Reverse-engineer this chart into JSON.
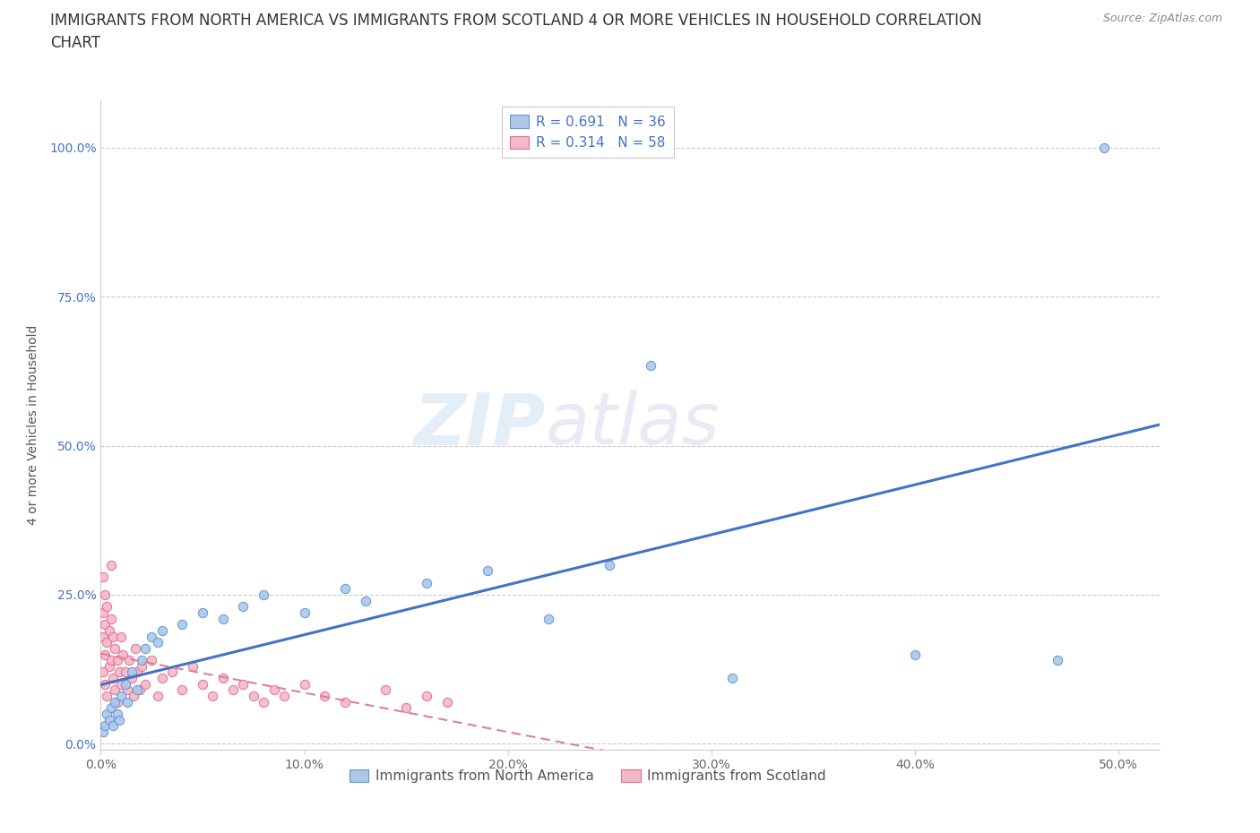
{
  "title_line1": "IMMIGRANTS FROM NORTH AMERICA VS IMMIGRANTS FROM SCOTLAND 4 OR MORE VEHICLES IN HOUSEHOLD CORRELATION",
  "title_line2": "CHART",
  "source_text": "Source: ZipAtlas.com",
  "ylabel": "4 or more Vehicles in Household",
  "xlabel": "",
  "xlim": [
    0.0,
    0.52
  ],
  "ylim": [
    -0.01,
    1.08
  ],
  "xtick_labels": [
    "0.0%",
    "10.0%",
    "20.0%",
    "30.0%",
    "40.0%",
    "50.0%"
  ],
  "xtick_vals": [
    0.0,
    0.1,
    0.2,
    0.3,
    0.4,
    0.5
  ],
  "ytick_labels": [
    "0.0%",
    "25.0%",
    "50.0%",
    "75.0%",
    "100.0%"
  ],
  "ytick_vals": [
    0.0,
    0.25,
    0.5,
    0.75,
    1.0
  ],
  "R_north_america": 0.691,
  "N_north_america": 36,
  "R_scotland": 0.314,
  "N_scotland": 58,
  "color_north_america": "#aec6e8",
  "color_scotland": "#f4b8c8",
  "edge_color_north_america": "#5b9bd5",
  "edge_color_scotland": "#e07090",
  "line_color_north_america": "#4472c4",
  "line_color_scotland": "#e08090",
  "watermark_zip": "ZIP",
  "watermark_atlas": "atlas",
  "legend_label_1": "Immigrants from North America",
  "legend_label_2": "Immigrants from Scotland",
  "north_america_x": [
    0.001,
    0.002,
    0.003,
    0.004,
    0.005,
    0.006,
    0.007,
    0.008,
    0.009,
    0.01,
    0.012,
    0.013,
    0.015,
    0.018,
    0.02,
    0.022,
    0.025,
    0.028,
    0.03,
    0.04,
    0.05,
    0.06,
    0.07,
    0.08,
    0.1,
    0.12,
    0.13,
    0.16,
    0.19,
    0.22,
    0.25,
    0.27,
    0.31,
    0.4,
    0.47,
    0.493
  ],
  "north_america_y": [
    0.02,
    0.03,
    0.05,
    0.04,
    0.06,
    0.03,
    0.07,
    0.05,
    0.04,
    0.08,
    0.1,
    0.07,
    0.12,
    0.09,
    0.14,
    0.16,
    0.18,
    0.17,
    0.19,
    0.2,
    0.22,
    0.21,
    0.23,
    0.25,
    0.22,
    0.26,
    0.24,
    0.27,
    0.29,
    0.21,
    0.3,
    0.635,
    0.11,
    0.15,
    0.14,
    1.0
  ],
  "scotland_x": [
    0.001,
    0.001,
    0.001,
    0.001,
    0.002,
    0.002,
    0.002,
    0.002,
    0.003,
    0.003,
    0.003,
    0.004,
    0.004,
    0.005,
    0.005,
    0.005,
    0.006,
    0.006,
    0.007,
    0.007,
    0.008,
    0.008,
    0.009,
    0.01,
    0.01,
    0.011,
    0.012,
    0.013,
    0.014,
    0.015,
    0.016,
    0.017,
    0.018,
    0.019,
    0.02,
    0.022,
    0.025,
    0.028,
    0.03,
    0.035,
    0.04,
    0.045,
    0.05,
    0.055,
    0.06,
    0.065,
    0.07,
    0.075,
    0.08,
    0.085,
    0.09,
    0.1,
    0.11,
    0.12,
    0.14,
    0.15,
    0.16,
    0.17
  ],
  "scotland_y": [
    0.28,
    0.22,
    0.18,
    0.12,
    0.25,
    0.2,
    0.15,
    0.1,
    0.23,
    0.17,
    0.08,
    0.19,
    0.13,
    0.3,
    0.21,
    0.14,
    0.18,
    0.11,
    0.16,
    0.09,
    0.14,
    0.07,
    0.12,
    0.18,
    0.1,
    0.15,
    0.12,
    0.09,
    0.14,
    0.11,
    0.08,
    0.16,
    0.12,
    0.09,
    0.13,
    0.1,
    0.14,
    0.08,
    0.11,
    0.12,
    0.09,
    0.13,
    0.1,
    0.08,
    0.11,
    0.09,
    0.1,
    0.08,
    0.07,
    0.09,
    0.08,
    0.1,
    0.08,
    0.07,
    0.09,
    0.06,
    0.08,
    0.07
  ],
  "grid_color": "#cccccc",
  "background_color": "#ffffff",
  "title_fontsize": 12,
  "axis_label_fontsize": 10,
  "tick_fontsize": 10,
  "legend_fontsize": 11
}
